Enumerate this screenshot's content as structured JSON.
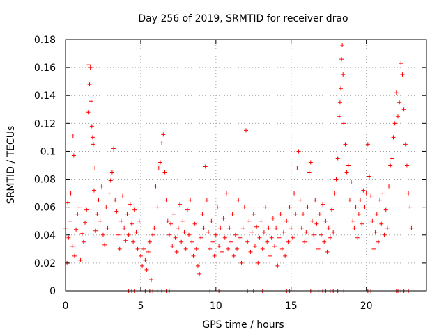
{
  "chart_data": {
    "type": "scatter",
    "title": "Day 256 of 2019, SRMTID for receiver drao",
    "xlabel": "GPS time / hours",
    "ylabel": "SRMTID / TECUs",
    "xlim": [
      0,
      24
    ],
    "ylim": [
      0,
      0.18
    ],
    "xticks": [
      0,
      5,
      10,
      15,
      20
    ],
    "xtick_labels": [
      "0",
      "5",
      "10",
      "15",
      "20"
    ],
    "yticks": [
      0,
      0.02,
      0.04,
      0.06,
      0.08,
      0.1,
      0.12,
      0.14,
      0.16,
      0.18
    ],
    "ytick_labels": [
      "0",
      "0.02",
      "0.04",
      "0.06",
      "0.08",
      "0.1",
      "0.12",
      "0.14",
      "0.16",
      "0.18"
    ],
    "grid": true,
    "marker": "+",
    "color": "#ff0000",
    "series": [
      {
        "name": "SRMTID",
        "points": [
          [
            0.0,
            0.045
          ],
          [
            0.1,
            0.02
          ],
          [
            0.15,
            0.063
          ],
          [
            0.2,
            0.038
          ],
          [
            0.3,
            0.05
          ],
          [
            0.35,
            0.07
          ],
          [
            0.45,
            0.032
          ],
          [
            0.5,
            0.111
          ],
          [
            0.55,
            0.097
          ],
          [
            0.6,
            0.025
          ],
          [
            0.7,
            0.044
          ],
          [
            0.8,
            0.055
          ],
          [
            0.9,
            0.06
          ],
          [
            1.0,
            0.022
          ],
          [
            1.1,
            0.041
          ],
          [
            1.2,
            0.035
          ],
          [
            1.3,
            0.049
          ],
          [
            1.4,
            0.058
          ],
          [
            1.5,
            0.128
          ],
          [
            1.55,
            0.162
          ],
          [
            1.6,
            0.148
          ],
          [
            1.65,
            0.16
          ],
          [
            1.7,
            0.136
          ],
          [
            1.75,
            0.118
          ],
          [
            1.8,
            0.11
          ],
          [
            1.85,
            0.105
          ],
          [
            1.9,
            0.072
          ],
          [
            1.95,
            0.088
          ],
          [
            2.0,
            0.043
          ],
          [
            2.1,
            0.055
          ],
          [
            2.2,
            0.065
          ],
          [
            2.3,
            0.05
          ],
          [
            2.4,
            0.075
          ],
          [
            2.5,
            0.04
          ],
          [
            2.6,
            0.033
          ],
          [
            2.7,
            0.06
          ],
          [
            2.8,
            0.045
          ],
          [
            2.9,
            0.07
          ],
          [
            3.0,
            0.079
          ],
          [
            3.1,
            0.085
          ],
          [
            3.2,
            0.102
          ],
          [
            3.3,
            0.065
          ],
          [
            3.4,
            0.057
          ],
          [
            3.5,
            0.04
          ],
          [
            3.6,
            0.03
          ],
          [
            3.7,
            0.05
          ],
          [
            3.8,
            0.068
          ],
          [
            3.9,
            0.045
          ],
          [
            4.0,
            0.036
          ],
          [
            4.1,
            0.055
          ],
          [
            4.2,
            0.04
          ],
          [
            4.3,
            0.062
          ],
          [
            4.4,
            0.048
          ],
          [
            4.5,
            0.035
          ],
          [
            4.6,
            0.058
          ],
          [
            4.7,
            0.042
          ],
          [
            4.8,
            0.03
          ],
          [
            4.9,
            0.05
          ],
          [
            5.0,
            0.025
          ],
          [
            5.1,
            0.018
          ],
          [
            5.2,
            0.03
          ],
          [
            5.3,
            0.022
          ],
          [
            5.4,
            0.015
          ],
          [
            5.5,
            0.028
          ],
          [
            5.6,
            0.035
          ],
          [
            5.7,
            0.008
          ],
          [
            5.8,
            0.04
          ],
          [
            5.9,
            0.045
          ],
          [
            6.0,
            0.075
          ],
          [
            6.1,
            0.06
          ],
          [
            6.2,
            0.088
          ],
          [
            6.3,
            0.092
          ],
          [
            6.4,
            0.106
          ],
          [
            6.5,
            0.112
          ],
          [
            6.6,
            0.085
          ],
          [
            6.7,
            0.065
          ],
          [
            6.8,
            0.05
          ],
          [
            6.9,
            0.04
          ],
          [
            7.0,
            0.048
          ],
          [
            7.1,
            0.032
          ],
          [
            7.2,
            0.055
          ],
          [
            7.3,
            0.038
          ],
          [
            7.4,
            0.028
          ],
          [
            7.5,
            0.045
          ],
          [
            7.6,
            0.062
          ],
          [
            7.7,
            0.035
          ],
          [
            7.8,
            0.05
          ],
          [
            7.9,
            0.042
          ],
          [
            8.0,
            0.03
          ],
          [
            8.1,
            0.058
          ],
          [
            8.2,
            0.04
          ],
          [
            8.3,
            0.065
          ],
          [
            8.4,
            0.035
          ],
          [
            8.5,
            0.025
          ],
          [
            8.6,
            0.048
          ],
          [
            8.7,
            0.03
          ],
          [
            8.8,
            0.018
          ],
          [
            8.9,
            0.012
          ],
          [
            9.0,
            0.038
          ],
          [
            9.1,
            0.055
          ],
          [
            9.2,
            0.045
          ],
          [
            9.3,
            0.089
          ],
          [
            9.4,
            0.065
          ],
          [
            9.5,
            0.042
          ],
          [
            9.6,
            0.03
          ],
          [
            9.7,
            0.05
          ],
          [
            9.8,
            0.035
          ],
          [
            9.9,
            0.025
          ],
          [
            10.0,
            0.04
          ],
          [
            10.1,
            0.06
          ],
          [
            10.2,
            0.032
          ],
          [
            10.3,
            0.045
          ],
          [
            10.4,
            0.028
          ],
          [
            10.5,
            0.052
          ],
          [
            10.6,
            0.038
          ],
          [
            10.7,
            0.07
          ],
          [
            10.8,
            0.03
          ],
          [
            10.9,
            0.045
          ],
          [
            11.0,
            0.035
          ],
          [
            11.1,
            0.055
          ],
          [
            11.2,
            0.025
          ],
          [
            11.3,
            0.04
          ],
          [
            11.4,
            0.03
          ],
          [
            11.5,
            0.065
          ],
          [
            11.6,
            0.038
          ],
          [
            11.7,
            0.02
          ],
          [
            11.8,
            0.045
          ],
          [
            11.9,
            0.06
          ],
          [
            12.0,
            0.115
          ],
          [
            12.1,
            0.035
          ],
          [
            12.2,
            0.05
          ],
          [
            12.3,
            0.028
          ],
          [
            12.4,
            0.042
          ],
          [
            12.5,
            0.055
          ],
          [
            12.6,
            0.032
          ],
          [
            12.7,
            0.046
          ],
          [
            12.8,
            0.02
          ],
          [
            12.9,
            0.038
          ],
          [
            13.0,
            0.05
          ],
          [
            13.1,
            0.03
          ],
          [
            13.2,
            0.042
          ],
          [
            13.3,
            0.06
          ],
          [
            13.4,
            0.035
          ],
          [
            13.5,
            0.045
          ],
          [
            13.6,
            0.025
          ],
          [
            13.7,
            0.038
          ],
          [
            13.8,
            0.052
          ],
          [
            13.9,
            0.032
          ],
          [
            14.0,
            0.045
          ],
          [
            14.1,
            0.018
          ],
          [
            14.2,
            0.038
          ],
          [
            14.3,
            0.055
          ],
          [
            14.4,
            0.03
          ],
          [
            14.5,
            0.042
          ],
          [
            14.6,
            0.025
          ],
          [
            14.7,
            0.05
          ],
          [
            14.8,
            0.035
          ],
          [
            14.9,
            0.06
          ],
          [
            15.0,
            0.045
          ],
          [
            15.1,
            0.038
          ],
          [
            15.2,
            0.07
          ],
          [
            15.3,
            0.055
          ],
          [
            15.4,
            0.088
          ],
          [
            15.5,
            0.1
          ],
          [
            15.6,
            0.065
          ],
          [
            15.7,
            0.045
          ],
          [
            15.8,
            0.055
          ],
          [
            15.9,
            0.035
          ],
          [
            16.0,
            0.042
          ],
          [
            16.1,
            0.06
          ],
          [
            16.2,
            0.085
          ],
          [
            16.3,
            0.092
          ],
          [
            16.4,
            0.05
          ],
          [
            16.5,
            0.04
          ],
          [
            16.6,
            0.065
          ],
          [
            16.7,
            0.048
          ],
          [
            16.8,
            0.03
          ],
          [
            16.9,
            0.055
          ],
          [
            17.0,
            0.04
          ],
          [
            17.1,
            0.062
          ],
          [
            17.2,
            0.035
          ],
          [
            17.3,
            0.05
          ],
          [
            17.4,
            0.028
          ],
          [
            17.5,
            0.045
          ],
          [
            17.6,
            0.038
          ],
          [
            17.7,
            0.058
          ],
          [
            17.8,
            0.042
          ],
          [
            17.9,
            0.07
          ],
          [
            18.0,
            0.08
          ],
          [
            18.1,
            0.095
          ],
          [
            18.2,
            0.125
          ],
          [
            18.25,
            0.135
          ],
          [
            18.3,
            0.145
          ],
          [
            18.35,
            0.166
          ],
          [
            18.4,
            0.176
          ],
          [
            18.45,
            0.155
          ],
          [
            18.5,
            0.12
          ],
          [
            18.6,
            0.105
          ],
          [
            18.7,
            0.085
          ],
          [
            18.8,
            0.09
          ],
          [
            18.9,
            0.065
          ],
          [
            19.0,
            0.078
          ],
          [
            19.1,
            0.05
          ],
          [
            19.2,
            0.045
          ],
          [
            19.3,
            0.06
          ],
          [
            19.4,
            0.038
          ],
          [
            19.5,
            0.055
          ],
          [
            19.6,
            0.065
          ],
          [
            19.7,
            0.048
          ],
          [
            19.8,
            0.072
          ],
          [
            19.9,
            0.06
          ],
          [
            20.0,
            0.07
          ],
          [
            20.1,
            0.105
          ],
          [
            20.2,
            0.082
          ],
          [
            20.3,
            0.068
          ],
          [
            20.4,
            0.05
          ],
          [
            20.5,
            0.03
          ],
          [
            20.6,
            0.042
          ],
          [
            20.7,
            0.055
          ],
          [
            20.8,
            0.035
          ],
          [
            20.9,
            0.065
          ],
          [
            21.0,
            0.048
          ],
          [
            21.1,
            0.07
          ],
          [
            21.2,
            0.04
          ],
          [
            21.3,
            0.058
          ],
          [
            21.4,
            0.045
          ],
          [
            21.5,
            0.075
          ],
          [
            21.6,
            0.09
          ],
          [
            21.7,
            0.095
          ],
          [
            21.8,
            0.11
          ],
          [
            21.9,
            0.12
          ],
          [
            22.0,
            0.142
          ],
          [
            22.1,
            0.125
          ],
          [
            22.2,
            0.135
          ],
          [
            22.3,
            0.163
          ],
          [
            22.4,
            0.155
          ],
          [
            22.5,
            0.13
          ],
          [
            22.6,
            0.105
          ],
          [
            22.7,
            0.09
          ],
          [
            22.8,
            0.07
          ],
          [
            22.9,
            0.06
          ],
          [
            23.0,
            0.045
          ]
        ],
        "zero_points": [
          4.2,
          4.4,
          4.6,
          5.3,
          5.6,
          5.8,
          6.1,
          6.4,
          6.7,
          6.9,
          9.6,
          10.2,
          12.1,
          12.5,
          13.1,
          13.6,
          14.2,
          14.7,
          14.9,
          16.3,
          16.8,
          17.1,
          17.3,
          17.6,
          17.8,
          18.1,
          18.5,
          20.1,
          20.3,
          22.0,
          22.1,
          22.3,
          22.5,
          22.8
        ]
      }
    ]
  }
}
